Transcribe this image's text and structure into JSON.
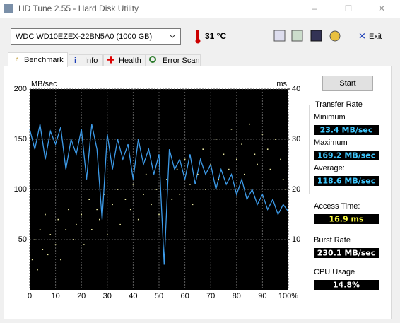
{
  "window": {
    "title": "HD Tune 2.55 - Hard Disk Utility",
    "minimize": "–",
    "maximize": "☐",
    "close": "✕"
  },
  "toolbar": {
    "drive": "WDC     WD10EZEX-22BN5A0 (1000 GB)",
    "temperature": "31 °C",
    "exit": "Exit"
  },
  "tabs": [
    "Benchmark",
    "Info",
    "Health",
    "Error Scan"
  ],
  "panel": {
    "start": "Start",
    "group": "Transfer Rate",
    "minimum_label": "Minimum",
    "minimum": "23.4 MB/sec",
    "maximum_label": "Maximum",
    "maximum": "169.2 MB/sec",
    "average_label": "Average:",
    "average": "118.6 MB/sec",
    "access_label": "Access Time:",
    "access": "16.9 ms",
    "burst_label": "Burst Rate",
    "burst": "230.1 MB/sec",
    "cpu_label": "CPU Usage",
    "cpu": "14.8%"
  },
  "chart_data": {
    "type": "line",
    "ylabel": "MB/sec",
    "y2label": "ms",
    "xlim": [
      0,
      100
    ],
    "xticks": [
      0,
      10,
      20,
      30,
      40,
      50,
      60,
      70,
      80,
      90,
      {
        "value": 100,
        "label": "100%"
      }
    ],
    "ylim": [
      0,
      200
    ],
    "yticks": [
      50,
      100,
      150,
      200
    ],
    "y2lim": [
      0,
      40
    ],
    "y2ticks": [
      10,
      20,
      30,
      40
    ],
    "grid": true,
    "series": [
      {
        "color": "#3d9be9",
        "x": [
          0,
          2,
          4,
          6,
          8,
          10,
          12,
          14,
          16,
          18,
          20,
          22,
          24,
          26,
          28,
          30,
          32,
          34,
          36,
          38,
          40,
          42,
          44,
          46,
          48,
          50,
          52,
          54,
          56,
          58,
          60,
          62,
          64,
          66,
          68,
          70,
          72,
          74,
          76,
          78,
          80,
          82,
          84,
          86,
          88,
          90,
          92,
          94,
          96,
          98,
          100
        ],
        "values": [
          160,
          140,
          165,
          130,
          158,
          145,
          162,
          120,
          150,
          135,
          160,
          110,
          165,
          140,
          70,
          155,
          120,
          150,
          130,
          145,
          110,
          150,
          125,
          140,
          115,
          135,
          25,
          140,
          120,
          130,
          110,
          135,
          105,
          130,
          115,
          125,
          100,
          120,
          105,
          115,
          95,
          110,
          90,
          100,
          85,
          95,
          80,
          90,
          75,
          85,
          78
        ]
      },
      {
        "color": "#e8e6a0",
        "axis": "y2",
        "style": "scatter",
        "x": [
          1,
          2,
          3,
          4,
          5,
          6,
          7,
          8,
          10,
          11,
          12,
          14,
          15,
          17,
          18,
          20,
          21,
          23,
          24,
          26,
          27,
          29,
          30,
          32,
          34,
          35,
          37,
          39,
          40,
          42,
          44,
          45,
          47,
          49,
          50,
          53,
          55,
          57,
          58,
          60,
          62,
          63,
          65,
          67,
          68,
          70,
          72,
          73,
          75,
          77,
          78,
          80,
          82,
          83,
          85,
          87,
          88,
          90,
          92,
          93,
          95,
          97,
          98,
          99
        ],
        "values": [
          6,
          10,
          4,
          12,
          8,
          15,
          7,
          11,
          9,
          14,
          6,
          12,
          16,
          10,
          13,
          15,
          9,
          18,
          12,
          16,
          14,
          19,
          11,
          17,
          20,
          13,
          18,
          16,
          21,
          14,
          19,
          23,
          17,
          20,
          15,
          22,
          18,
          24,
          19,
          26,
          21,
          17,
          23,
          28,
          20,
          25,
          30,
          22,
          27,
          24,
          32,
          26,
          29,
          23,
          33,
          27,
          25,
          31,
          28,
          24,
          30,
          26,
          22,
          20
        ]
      }
    ]
  }
}
